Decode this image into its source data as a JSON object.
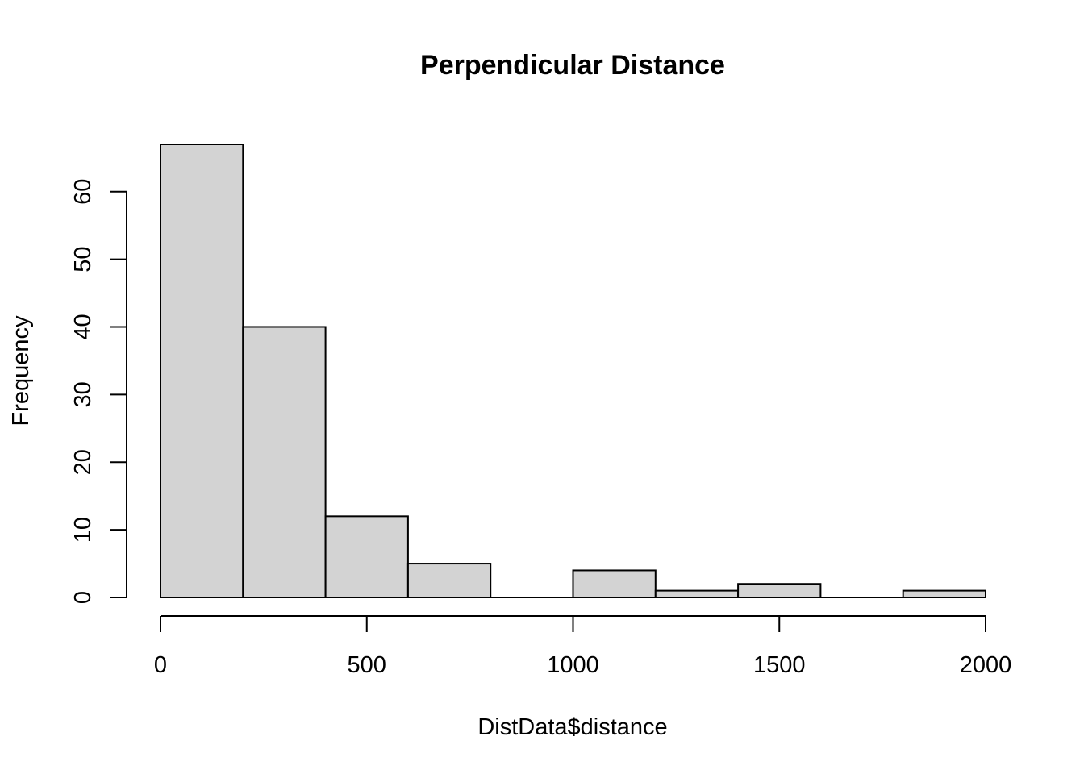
{
  "chart_data": {
    "type": "bar",
    "subtype": "histogram",
    "title": "Perpendicular Distance",
    "xlabel": "DistData$distance",
    "ylabel": "Frequency",
    "bins": [
      {
        "start": 0,
        "end": 200,
        "count": 67
      },
      {
        "start": 200,
        "end": 400,
        "count": 40
      },
      {
        "start": 400,
        "end": 600,
        "count": 12
      },
      {
        "start": 600,
        "end": 800,
        "count": 5
      },
      {
        "start": 800,
        "end": 1000,
        "count": 0
      },
      {
        "start": 1000,
        "end": 1200,
        "count": 4
      },
      {
        "start": 1200,
        "end": 1400,
        "count": 1
      },
      {
        "start": 1400,
        "end": 1600,
        "count": 2
      },
      {
        "start": 1600,
        "end": 1800,
        "count": 0
      },
      {
        "start": 1800,
        "end": 2000,
        "count": 1
      }
    ],
    "x_ticks": [
      0,
      500,
      1000,
      1500,
      2000
    ],
    "y_ticks": [
      0,
      10,
      20,
      30,
      40,
      50,
      60
    ],
    "xlim": [
      0,
      2000
    ],
    "ylim": [
      0,
      67
    ],
    "bar_color": "#d3d3d3",
    "grid": false
  }
}
